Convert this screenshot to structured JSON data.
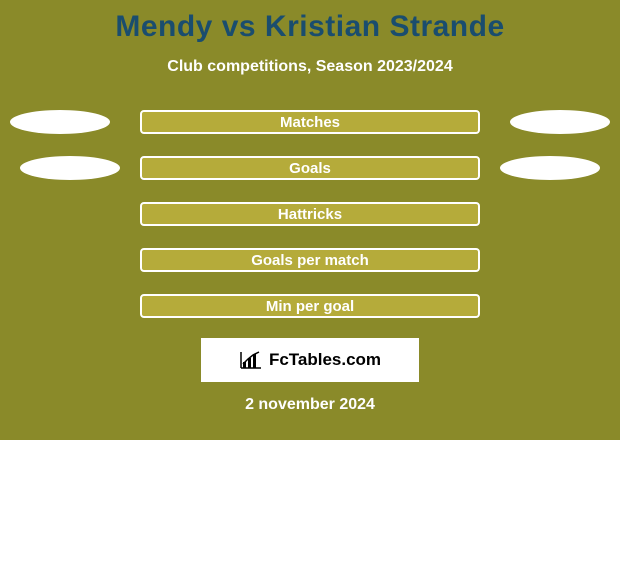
{
  "card": {
    "background_color": "#8a8a29",
    "title_color": "#1a4d6e",
    "bar_fill_color": "#b5ab3a",
    "bar_border_color": "#ffffff",
    "text_white": "#ffffff"
  },
  "title": "Mendy vs Kristian Strande",
  "subtitle": "Club competitions, Season 2023/2024",
  "stats": [
    {
      "label": "Matches",
      "left_blob": true,
      "right_blob": true
    },
    {
      "label": "Goals",
      "left_blob": true,
      "right_blob": true
    },
    {
      "label": "Hattricks",
      "left_blob": false,
      "right_blob": false
    },
    {
      "label": "Goals per match",
      "left_blob": false,
      "right_blob": false
    },
    {
      "label": "Min per goal",
      "left_blob": false,
      "right_blob": false
    }
  ],
  "left_blob_offsets": [
    10,
    20
  ],
  "right_blob_offsets": [
    10,
    20
  ],
  "logo_text": "FcTables.com",
  "date": "2 november 2024"
}
